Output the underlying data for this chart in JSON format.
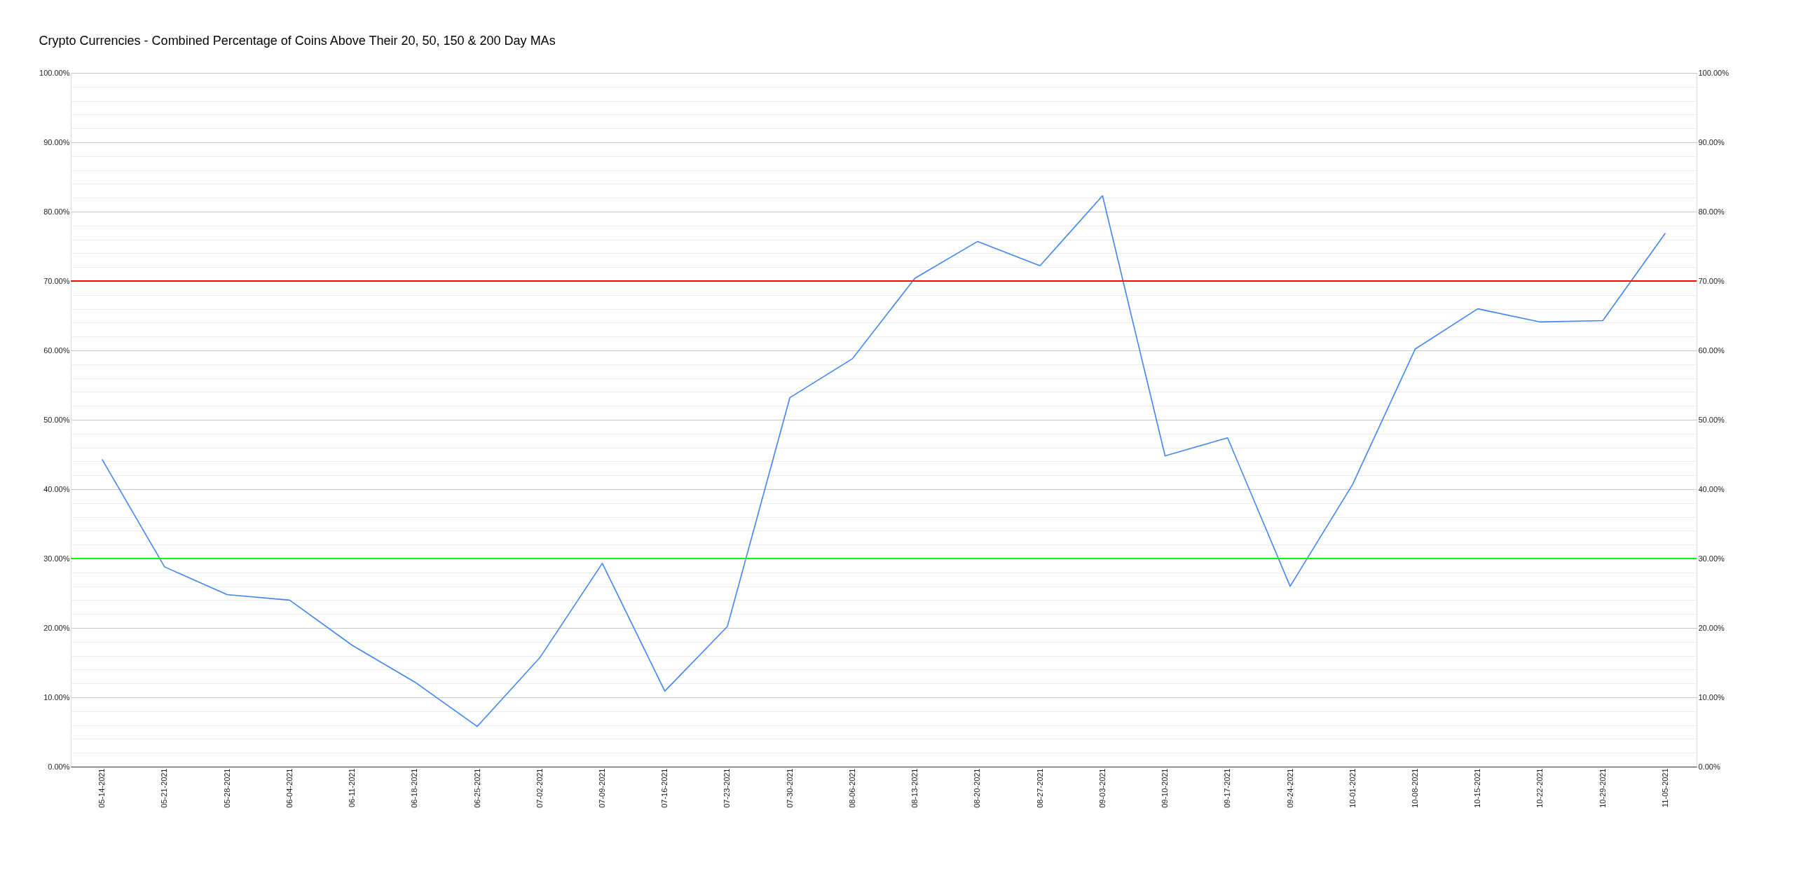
{
  "chart_data": {
    "type": "line",
    "title": "Crypto Currencies - Combined Percentage of Coins Above Their 20, 50, 150 & 200 Day MAs",
    "categories": [
      "05-14-2021",
      "05-21-2021",
      "05-28-2021",
      "06-04-2021",
      "06-11-2021",
      "06-18-2021",
      "06-25-2021",
      "07-02-2021",
      "07-09-2021",
      "07-16-2021",
      "07-23-2021",
      "07-30-2021",
      "08-06-2021",
      "08-13-2021",
      "08-20-2021",
      "08-27-2021",
      "09-03-2021",
      "09-10-2021",
      "09-17-2021",
      "09-24-2021",
      "10-01-2021",
      "10-08-2021",
      "10-15-2021",
      "10-22-2021",
      "10-29-2021",
      "11-05-2021"
    ],
    "series": [
      {
        "color": "#4285f4",
        "values": [
          44.3,
          28.8,
          24.8,
          24.0,
          17.5,
          12.2,
          5.8,
          15.7,
          29.3,
          10.9,
          20.2,
          53.2,
          58.8,
          70.4,
          75.7,
          72.2,
          82.3,
          44.8,
          47.4,
          26.0,
          40.7,
          60.2,
          66.0,
          64.1,
          64.3,
          76.9
        ]
      }
    ],
    "ylim": [
      0,
      100
    ],
    "yticks": [
      {
        "value": 0,
        "label": "0.00%"
      },
      {
        "value": 2,
        "label": null
      },
      {
        "value": 4,
        "label": null
      },
      {
        "value": 6,
        "label": null
      },
      {
        "value": 8,
        "label": null
      },
      {
        "value": 10,
        "label": "10.00%"
      },
      {
        "value": 12,
        "label": null
      },
      {
        "value": 14,
        "label": null
      },
      {
        "value": 16,
        "label": null
      },
      {
        "value": 18,
        "label": null
      },
      {
        "value": 20,
        "label": "20.00%"
      },
      {
        "value": 22,
        "label": null
      },
      {
        "value": 24,
        "label": null
      },
      {
        "value": 26,
        "label": null
      },
      {
        "value": 28,
        "label": null
      },
      {
        "value": 30,
        "label": "30.00%"
      },
      {
        "value": 32,
        "label": null
      },
      {
        "value": 34,
        "label": null
      },
      {
        "value": 36,
        "label": null
      },
      {
        "value": 38,
        "label": null
      },
      {
        "value": 40,
        "label": "40.00%"
      },
      {
        "value": 42,
        "label": null
      },
      {
        "value": 44,
        "label": null
      },
      {
        "value": 46,
        "label": null
      },
      {
        "value": 48,
        "label": null
      },
      {
        "value": 50,
        "label": "50.00%"
      },
      {
        "value": 52,
        "label": null
      },
      {
        "value": 54,
        "label": null
      },
      {
        "value": 56,
        "label": null
      },
      {
        "value": 58,
        "label": null
      },
      {
        "value": 60,
        "label": "60.00%"
      },
      {
        "value": 62,
        "label": null
      },
      {
        "value": 64,
        "label": null
      },
      {
        "value": 66,
        "label": null
      },
      {
        "value": 68,
        "label": null
      },
      {
        "value": 70,
        "label": "70.00%"
      },
      {
        "value": 72,
        "label": null
      },
      {
        "value": 74,
        "label": null
      },
      {
        "value": 76,
        "label": null
      },
      {
        "value": 78,
        "label": null
      },
      {
        "value": 80,
        "label": "80.00%"
      },
      {
        "value": 82,
        "label": null
      },
      {
        "value": 84,
        "label": null
      },
      {
        "value": 86,
        "label": null
      },
      {
        "value": 88,
        "label": null
      },
      {
        "value": 90,
        "label": "90.00%"
      },
      {
        "value": 92,
        "label": null
      },
      {
        "value": 94,
        "label": null
      },
      {
        "value": 96,
        "label": null
      },
      {
        "value": 98,
        "label": null
      },
      {
        "value": 100,
        "label": "100.00%"
      }
    ],
    "y2lim": [
      0,
      100
    ],
    "y2ticks": [
      {
        "value": 0,
        "label": "0.00%"
      },
      {
        "value": 10,
        "label": "10.00%"
      },
      {
        "value": 20,
        "label": "20.00%"
      },
      {
        "value": 30,
        "label": "30.00%"
      },
      {
        "value": 40,
        "label": "40.00%"
      },
      {
        "value": 50,
        "label": "50.00%"
      },
      {
        "value": 60,
        "label": "60.00%"
      },
      {
        "value": 70,
        "label": "70.00%"
      },
      {
        "value": 80,
        "label": "80.00%"
      },
      {
        "value": 90,
        "label": "90.00%"
      },
      {
        "value": 100,
        "label": "100.00%"
      }
    ],
    "ref_lines": [
      {
        "axis": "y",
        "value": 70,
        "color": "#ff0000"
      },
      {
        "axis": "y",
        "value": 30,
        "color": "#00ff00"
      }
    ],
    "grid": "y",
    "marker": "none",
    "line_style": "solid"
  }
}
